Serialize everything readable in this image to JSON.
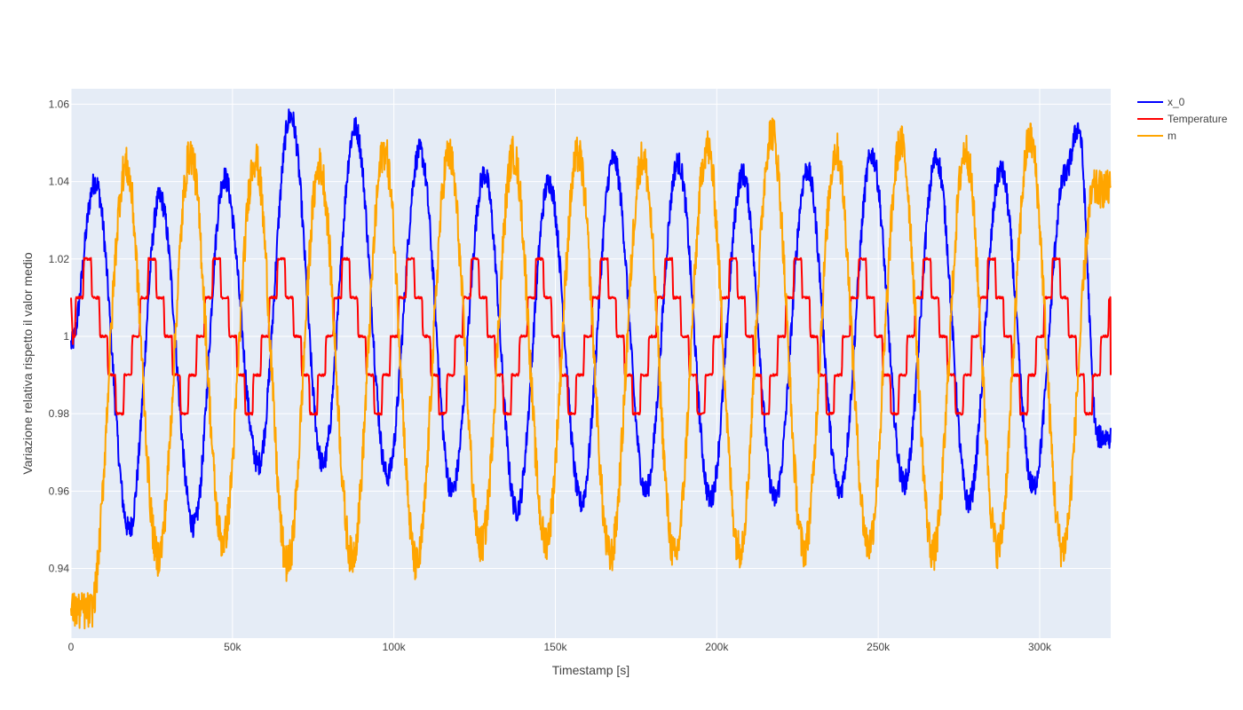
{
  "chart_data": {
    "type": "line",
    "title": "",
    "xlabel": "Timestamp [s]",
    "ylabel": "Variazione relativa rispetto il valor medio",
    "xlim": [
      0,
      322000
    ],
    "ylim": [
      0.922,
      1.064
    ],
    "grid": true,
    "legend_position": "top-right",
    "x_ticks": [
      0,
      50000,
      100000,
      150000,
      200000,
      250000,
      300000
    ],
    "x_tick_labels": [
      "0",
      "50k",
      "100k",
      "150k",
      "200k",
      "250k",
      "300k"
    ],
    "y_ticks": [
      0.94,
      0.96,
      0.98,
      1.0,
      1.02,
      1.04,
      1.06
    ],
    "y_tick_labels": [
      "0.94",
      "0.96",
      "0.98",
      "1",
      "1.02",
      "1.04",
      "1.06"
    ],
    "period_s": 20000,
    "series": [
      {
        "name": "x_0",
        "color": "#0000ff",
        "peaks": [
          [
            7500,
            1.04
          ],
          [
            27500,
            1.036
          ],
          [
            47500,
            1.041
          ],
          [
            68000,
            1.057
          ],
          [
            88000,
            1.054
          ],
          [
            108000,
            1.048
          ],
          [
            128000,
            1.042
          ],
          [
            148000,
            1.04
          ],
          [
            168000,
            1.046
          ],
          [
            188000,
            1.045
          ],
          [
            208000,
            1.042
          ],
          [
            228000,
            1.043
          ],
          [
            248000,
            1.047
          ],
          [
            268000,
            1.046
          ],
          [
            288000,
            1.043
          ],
          [
            308000,
            1.042
          ],
          [
            312000,
            1.054
          ]
        ],
        "troughs": [
          [
            18000,
            0.95
          ],
          [
            38000,
            0.951
          ],
          [
            58000,
            0.967
          ],
          [
            78000,
            0.967
          ],
          [
            98000,
            0.964
          ],
          [
            118000,
            0.96
          ],
          [
            138000,
            0.955
          ],
          [
            158000,
            0.957
          ],
          [
            178000,
            0.96
          ],
          [
            198000,
            0.958
          ],
          [
            218000,
            0.958
          ],
          [
            238000,
            0.96
          ],
          [
            258000,
            0.962
          ],
          [
            278000,
            0.957
          ],
          [
            298000,
            0.961
          ],
          [
            318000,
            0.974
          ]
        ]
      },
      {
        "name": "Temperature",
        "color": "#ff0000",
        "levels": [
          1.0,
          1.01,
          1.02,
          1.01,
          1.0,
          0.99,
          0.98,
          0.99
        ],
        "start": 1.01,
        "end": 0.99
      },
      {
        "name": "m",
        "color": "#ffa500",
        "peaks": [
          [
            17000,
            1.044
          ],
          [
            37000,
            1.047
          ],
          [
            57000,
            1.046
          ],
          [
            77000,
            1.044
          ],
          [
            97000,
            1.048
          ],
          [
            117000,
            1.047
          ],
          [
            137000,
            1.047
          ],
          [
            157000,
            1.047
          ],
          [
            177000,
            1.046
          ],
          [
            197000,
            1.049
          ],
          [
            217000,
            1.053
          ],
          [
            237000,
            1.048
          ],
          [
            257000,
            1.05
          ],
          [
            277000,
            1.048
          ],
          [
            297000,
            1.051
          ],
          [
            317000,
            1.038
          ]
        ],
        "troughs": [
          [
            6000,
            0.929
          ],
          [
            27000,
            0.943
          ],
          [
            47000,
            0.947
          ],
          [
            67000,
            0.941
          ],
          [
            87000,
            0.943
          ],
          [
            107000,
            0.941
          ],
          [
            127000,
            0.946
          ],
          [
            147000,
            0.947
          ],
          [
            167000,
            0.943
          ],
          [
            187000,
            0.943
          ],
          [
            207000,
            0.945
          ],
          [
            227000,
            0.945
          ],
          [
            247000,
            0.946
          ],
          [
            267000,
            0.944
          ],
          [
            287000,
            0.945
          ],
          [
            307000,
            0.945
          ]
        ]
      }
    ]
  }
}
